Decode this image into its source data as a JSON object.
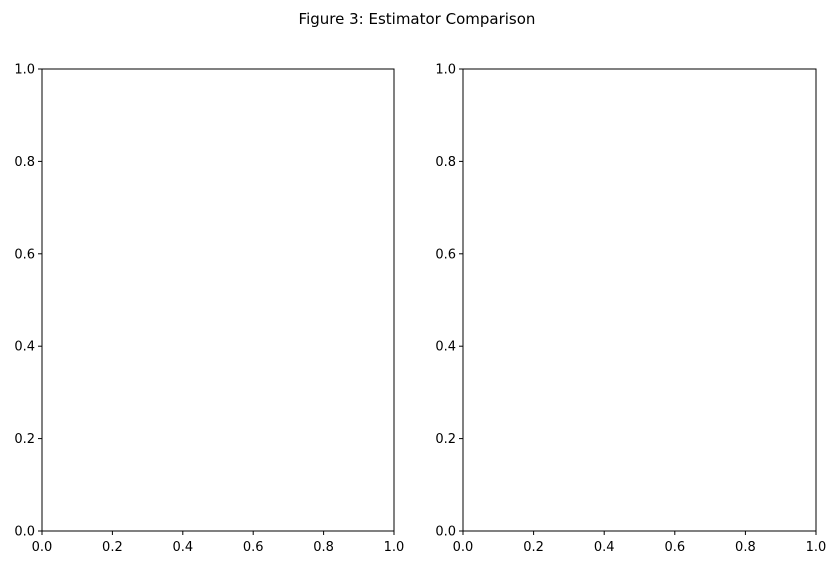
{
  "figure": {
    "title": "Figure 3: Estimator Comparison",
    "background": "#ffffff"
  },
  "chart_data": [
    {
      "type": "line",
      "title": "",
      "xlabel": "",
      "ylabel": "",
      "xlim": [
        0,
        1
      ],
      "ylim": [
        0,
        1
      ],
      "xticks": [
        0.0,
        0.2,
        0.4,
        0.6,
        0.8,
        1.0
      ],
      "yticks": [
        0.0,
        0.2,
        0.4,
        0.6,
        0.8,
        1.0
      ],
      "xtick_labels": [
        "0.0",
        "0.2",
        "0.4",
        "0.6",
        "0.8",
        "1.0"
      ],
      "ytick_labels": [
        "0.0",
        "0.2",
        "0.4",
        "0.6",
        "0.8",
        "1.0"
      ],
      "grid": false,
      "series": []
    },
    {
      "type": "line",
      "title": "",
      "xlabel": "",
      "ylabel": "",
      "xlim": [
        0,
        1
      ],
      "ylim": [
        0,
        1
      ],
      "xticks": [
        0.0,
        0.2,
        0.4,
        0.6,
        0.8,
        1.0
      ],
      "yticks": [
        0.0,
        0.2,
        0.4,
        0.6,
        0.8,
        1.0
      ],
      "xtick_labels": [
        "0.0",
        "0.2",
        "0.4",
        "0.6",
        "0.8",
        "1.0"
      ],
      "ytick_labels": [
        "0.0",
        "0.2",
        "0.4",
        "0.6",
        "0.8",
        "1.0"
      ],
      "grid": false,
      "series": []
    }
  ]
}
